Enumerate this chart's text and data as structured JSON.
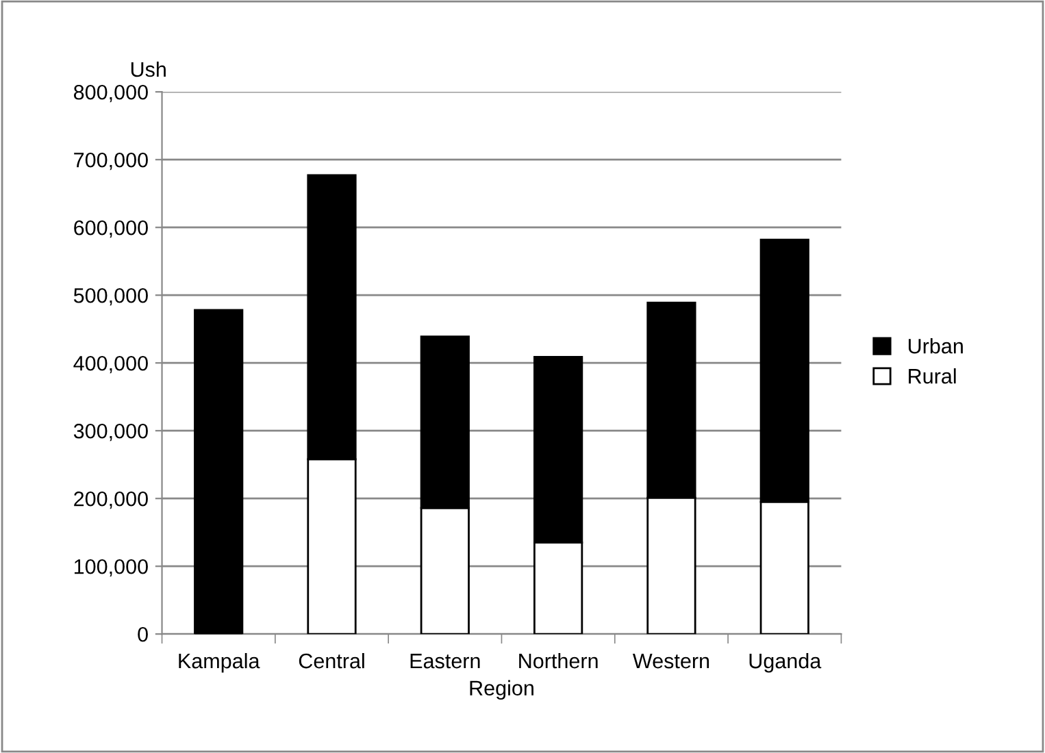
{
  "chart_data": {
    "type": "bar",
    "stacked": true,
    "ylabel": "Ush",
    "xlabel": "Region",
    "categories": [
      "Kampala",
      "Central",
      "Eastern",
      "Northern",
      "Western",
      "Uganda"
    ],
    "series": [
      {
        "name": "Rural",
        "color": "#ffffff",
        "values": [
          0,
          258000,
          186000,
          135000,
          201000,
          195000
        ]
      },
      {
        "name": "Urban",
        "color": "#000000",
        "values": [
          478000,
          419000,
          253000,
          274000,
          288000,
          387000
        ]
      }
    ],
    "ylim": [
      0,
      800000
    ],
    "yticks": [
      {
        "value": 0,
        "label": "0"
      },
      {
        "value": 100000,
        "label": "100,000"
      },
      {
        "value": 200000,
        "label": "200,000"
      },
      {
        "value": 300000,
        "label": "300,000"
      },
      {
        "value": 400000,
        "label": "400,000"
      },
      {
        "value": 500000,
        "label": "500,000"
      },
      {
        "value": 600000,
        "label": "600,000"
      },
      {
        "value": 700000,
        "label": "700,000"
      },
      {
        "value": 800000,
        "label": "800,000"
      }
    ],
    "grid": "y",
    "legend": "right"
  }
}
